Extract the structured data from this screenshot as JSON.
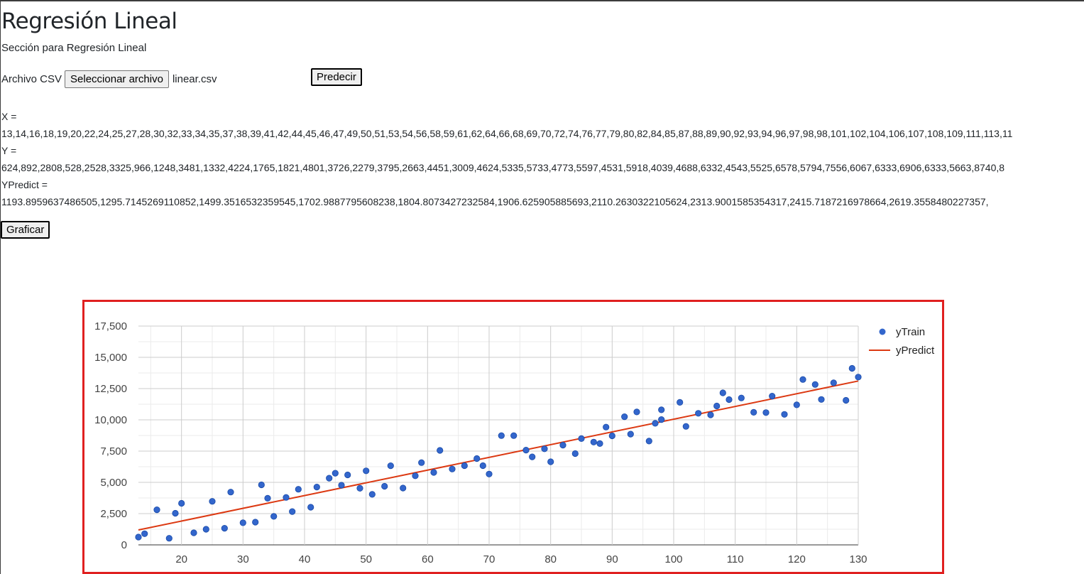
{
  "header": {
    "title": "Regresión Lineal",
    "subtitle": "Sección para Regresión Lineal"
  },
  "form": {
    "csv_label": "Archivo CSV",
    "file_button_label": "Seleccionar archivo",
    "file_name": "linear.csv",
    "predict_button_label": "Predecir",
    "graph_button_label": "Graficar"
  },
  "output": {
    "x_label": "X =",
    "x_values": "13,14,16,18,19,20,22,24,25,27,28,30,32,33,34,35,37,38,39,41,42,44,45,46,47,49,50,51,53,54,56,58,59,61,62,64,66,68,69,70,72,74,76,77,79,80,82,84,85,87,88,89,90,92,93,94,96,97,98,98,101,102,104,106,107,108,109,111,113,11",
    "y_label": "Y =",
    "y_values": "624,892,2808,528,2528,3325,966,1248,3481,1332,4224,1765,1821,4801,3726,2279,3795,2663,4451,3009,4624,5335,5733,4773,5597,4531,5918,4039,4688,6332,4543,5525,6578,5794,7556,6067,6333,6906,6333,5663,8740,8",
    "ypredict_label": "YPredict =",
    "ypredict_values": "1193.8959637486505,1295.7145269110852,1499.3516532359545,1702.9887795608238,1804.8073427232584,1906.625905885693,2110.2630322105624,2313.9001585354317,2415.7187216978664,2619.3558480227357,"
  },
  "chart_data": {
    "type": "scatter",
    "series": [
      {
        "name": "yTrain",
        "kind": "points",
        "color": "#3366cc",
        "points": [
          [
            13,
            624
          ],
          [
            14,
            892
          ],
          [
            16,
            2808
          ],
          [
            18,
            528
          ],
          [
            19,
            2528
          ],
          [
            20,
            3325
          ],
          [
            22,
            966
          ],
          [
            24,
            1248
          ],
          [
            25,
            3481
          ],
          [
            27,
            1332
          ],
          [
            28,
            4224
          ],
          [
            30,
            1765
          ],
          [
            32,
            1821
          ],
          [
            33,
            4801
          ],
          [
            34,
            3726
          ],
          [
            35,
            2279
          ],
          [
            37,
            3795
          ],
          [
            38,
            2663
          ],
          [
            39,
            4451
          ],
          [
            41,
            3009
          ],
          [
            42,
            4624
          ],
          [
            44,
            5335
          ],
          [
            45,
            5733
          ],
          [
            46,
            4773
          ],
          [
            47,
            5597
          ],
          [
            49,
            4531
          ],
          [
            50,
            5918
          ],
          [
            51,
            4039
          ],
          [
            53,
            4688
          ],
          [
            54,
            6332
          ],
          [
            56,
            4543
          ],
          [
            58,
            5525
          ],
          [
            59,
            6578
          ],
          [
            61,
            5794
          ],
          [
            62,
            7556
          ],
          [
            64,
            6067
          ],
          [
            66,
            6333
          ],
          [
            68,
            6906
          ],
          [
            69,
            6333
          ],
          [
            70,
            5663
          ],
          [
            72,
            8740
          ],
          [
            74,
            8740
          ],
          [
            76,
            7580
          ],
          [
            77,
            7040
          ],
          [
            79,
            7680
          ],
          [
            80,
            6650
          ],
          [
            82,
            7980
          ],
          [
            84,
            7300
          ],
          [
            85,
            8500
          ],
          [
            87,
            8220
          ],
          [
            88,
            8100
          ],
          [
            89,
            9420
          ],
          [
            90,
            8720
          ],
          [
            92,
            10250
          ],
          [
            93,
            8860
          ],
          [
            94,
            10630
          ],
          [
            96,
            8300
          ],
          [
            97,
            9720
          ],
          [
            98,
            10020
          ],
          [
            98,
            10800
          ],
          [
            101,
            11400
          ],
          [
            102,
            9480
          ],
          [
            104,
            10520
          ],
          [
            106,
            10400
          ],
          [
            107,
            11110
          ],
          [
            108,
            12160
          ],
          [
            109,
            11620
          ],
          [
            111,
            11750
          ],
          [
            113,
            10600
          ],
          [
            115,
            10580
          ],
          [
            116,
            11900
          ],
          [
            118,
            10440
          ],
          [
            120,
            11200
          ],
          [
            121,
            13230
          ],
          [
            123,
            12830
          ],
          [
            124,
            11630
          ],
          [
            126,
            12960
          ],
          [
            128,
            11560
          ],
          [
            129,
            14120
          ],
          [
            130,
            13420
          ]
        ]
      },
      {
        "name": "yPredict",
        "kind": "line",
        "color": "#dc3912",
        "points": [
          [
            13,
            1193.9
          ],
          [
            130,
            13107
          ]
        ]
      }
    ],
    "x_ticks": [
      20,
      30,
      40,
      50,
      60,
      70,
      80,
      90,
      100,
      110,
      120,
      130
    ],
    "y_ticks": [
      "0",
      "2,500",
      "5,000",
      "7,500",
      "10,000",
      "12,500",
      "15,000",
      "17,500"
    ],
    "y_tick_values": [
      0,
      2500,
      5000,
      7500,
      10000,
      12500,
      15000,
      17500
    ],
    "xlim": [
      13,
      130
    ],
    "ylim": [
      0,
      17500
    ],
    "grid": true,
    "legend_position": "right"
  }
}
